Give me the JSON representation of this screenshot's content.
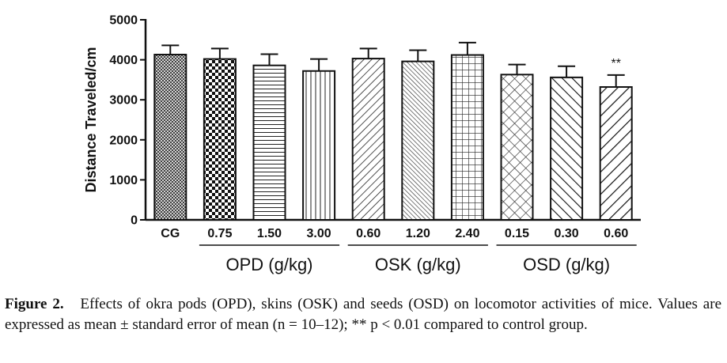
{
  "chart_data": {
    "type": "bar",
    "ylabel": "Distance Traveled/cm",
    "ylim": [
      0,
      5000
    ],
    "yticks": [
      0,
      1000,
      2000,
      3000,
      4000,
      5000
    ],
    "categories": [
      "CG",
      "0.75",
      "1.50",
      "3.00",
      "0.60",
      "1.20",
      "2.40",
      "0.15",
      "0.30",
      "0.60"
    ],
    "values": [
      4130,
      4020,
      3860,
      3720,
      4030,
      3960,
      4120,
      3630,
      3560,
      3320
    ],
    "errors": [
      230,
      260,
      280,
      300,
      250,
      280,
      310,
      250,
      280,
      300
    ],
    "patterns": [
      "fine-crosshatch",
      "checker",
      "horizontal",
      "vertical",
      "diagonal-wide",
      "diagonal-dense",
      "grid",
      "diamond",
      "diagonal-back",
      "diagonal-fwd-wide"
    ],
    "annotations": [
      "",
      "",
      "",
      "",
      "",
      "",
      "",
      "",
      "",
      "**"
    ],
    "groups": [
      {
        "label": "OPD (g/kg)",
        "from": 1,
        "to": 3
      },
      {
        "label": "OSK (g/kg)",
        "from": 4,
        "to": 6
      },
      {
        "label": "OSD (g/kg)",
        "from": 7,
        "to": 9
      }
    ],
    "grid": false,
    "legend": "none"
  },
  "caption": {
    "label": "Figure 2.",
    "text": "Effects of okra pods (OPD), skins (OSK) and seeds (OSD) on locomotor activities of mice. Values are expressed as mean ± standard error of mean (n = 10–12); ** p < 0.01 compared to control group."
  }
}
